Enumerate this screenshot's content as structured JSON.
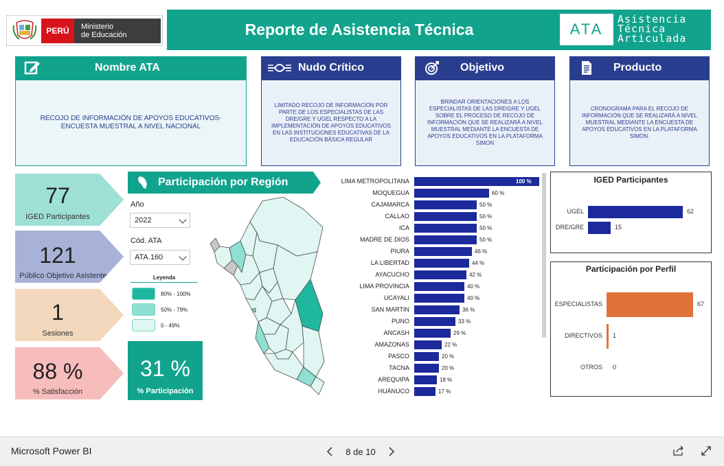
{
  "header": {
    "country": "PERÚ",
    "ministry_line1": "Ministerio",
    "ministry_line2": "de Educación",
    "title": "Reporte de Asistencia Técnica",
    "badge": "ATA",
    "badge_full_1": "Asistencia",
    "badge_full_2": "Técnica",
    "badge_full_3": "Articulada"
  },
  "cards": [
    {
      "title": "Nombre ATA",
      "icon": "edit-icon",
      "body": "RECOJO DE INFORMACIÓN DE APOYOS EDUCATIVOS- ENCUESTA MUESTRAL A NIVEL NACIONAL"
    },
    {
      "title": "Nudo Crítico",
      "icon": "knot-icon",
      "body": "LIMITADO RECOJO DE INFORMACIÓN POR PARTE DE LOS ESPECIALISTAS DE LAS DRE/GRE Y UGEL RESPECTO A LA IMPLEMENTACIÓN DE APOYOS EDUCATIVOS EN LAS INSTITUCIONES EDUCATIVAS DE LA EDUCACIÓN BÁSICA REGULAR"
    },
    {
      "title": "Objetivo",
      "icon": "target-icon",
      "body": "BRINDAR ORIENTACIONES A LOS ESPECIALISTAS DE LAS DRE/GRE Y UGEL SOBRE EL PROCESO DE RECOJO DE INFORMACIÓN QUE SE REALIZARÁ A NIVEL MUESTRAL MEDIANTE LA ENCUESTA DE APOYOS EDUCATIVOS EN LA PLATAFORMA SIMON"
    },
    {
      "title": "Producto",
      "icon": "document-icon",
      "body": "CRONOGRAMA PARA EL RECOJO DE INFORMACIÓN QUE SE REALIZARÁ A NIVEL MUESTRAL MEDIANTE LA ENCUESTA DE APOYOS EDUCATIVOS EN LA PLATAFORMA SIMON."
    }
  ],
  "kpis": [
    {
      "value": "77",
      "label": "IGED Participantes",
      "color": "#9ee0d5"
    },
    {
      "value": "121",
      "label": "Público Objetivo Asistente",
      "color": "#a7b2d6"
    },
    {
      "value": "1",
      "label": "Sesiones",
      "color": "#f3d8bd"
    },
    {
      "value": "88 %",
      "label": "% Satisfacción",
      "color": "#f7bcbc"
    }
  ],
  "region_section": {
    "title": "Participación por Región",
    "year_label": "Año",
    "year_value": "2022",
    "code_label": "Cód. ATA",
    "code_value": "ATA.160",
    "legend_title": "Leyenda",
    "legend": [
      {
        "label": "80% - 100%",
        "color": "#1fb89f"
      },
      {
        "label": "50% - 79%",
        "color": "#8fe0d2"
      },
      {
        "label": "0 - 49%",
        "color": "#dff6f2"
      }
    ],
    "participation_value": "31 %",
    "participation_label": "% Participación"
  },
  "chart_data": [
    {
      "type": "bar",
      "orientation": "horizontal",
      "categories": [
        "LIMA METROPOLITANA",
        "MOQUEGUA",
        "CAJAMARCA",
        "CALLAO",
        "ICA",
        "MADRE DE DIOS",
        "PIURA",
        "LA LIBERTAD",
        "AYACUCHO",
        "LIMA PROVINCIA",
        "UCAYALI",
        "SAN MARTIN",
        "PUNO",
        "ANCASH",
        "AMAZONAS",
        "PASCO",
        "TACNA",
        "AREQUIPA",
        "HUÁNUCO"
      ],
      "values": [
        100,
        60,
        50,
        50,
        50,
        50,
        46,
        44,
        42,
        40,
        40,
        36,
        33,
        29,
        22,
        20,
        20,
        18,
        17
      ],
      "value_labels": [
        "100 %",
        "60 %",
        "50 %",
        "50 %",
        "50 %",
        "50 %",
        "46 %",
        "44 %",
        "42 %",
        "40 %",
        "40 %",
        "36 %",
        "33 %",
        "29 %",
        "22 %",
        "20 %",
        "20 %",
        "18 %",
        "17 %"
      ],
      "color": "#1c2a9c"
    },
    {
      "type": "bar",
      "orientation": "horizontal",
      "title": "IGED Participantes",
      "categories": [
        "UGEL",
        "DRE/GRE"
      ],
      "values": [
        62,
        15
      ],
      "color": "#1c2a9c"
    },
    {
      "type": "bar",
      "orientation": "horizontal",
      "title": "Participación por Perfil",
      "categories": [
        "ESPECIALISTAS",
        "DIRECTIVOS",
        "OTROS"
      ],
      "values": [
        67,
        1,
        0
      ],
      "color": "#e0733a"
    }
  ],
  "footer": {
    "app": "Microsoft Power BI",
    "page": "8 de 10"
  },
  "colors": {
    "teal": "#12a38d",
    "navy": "#2a3e8f"
  }
}
